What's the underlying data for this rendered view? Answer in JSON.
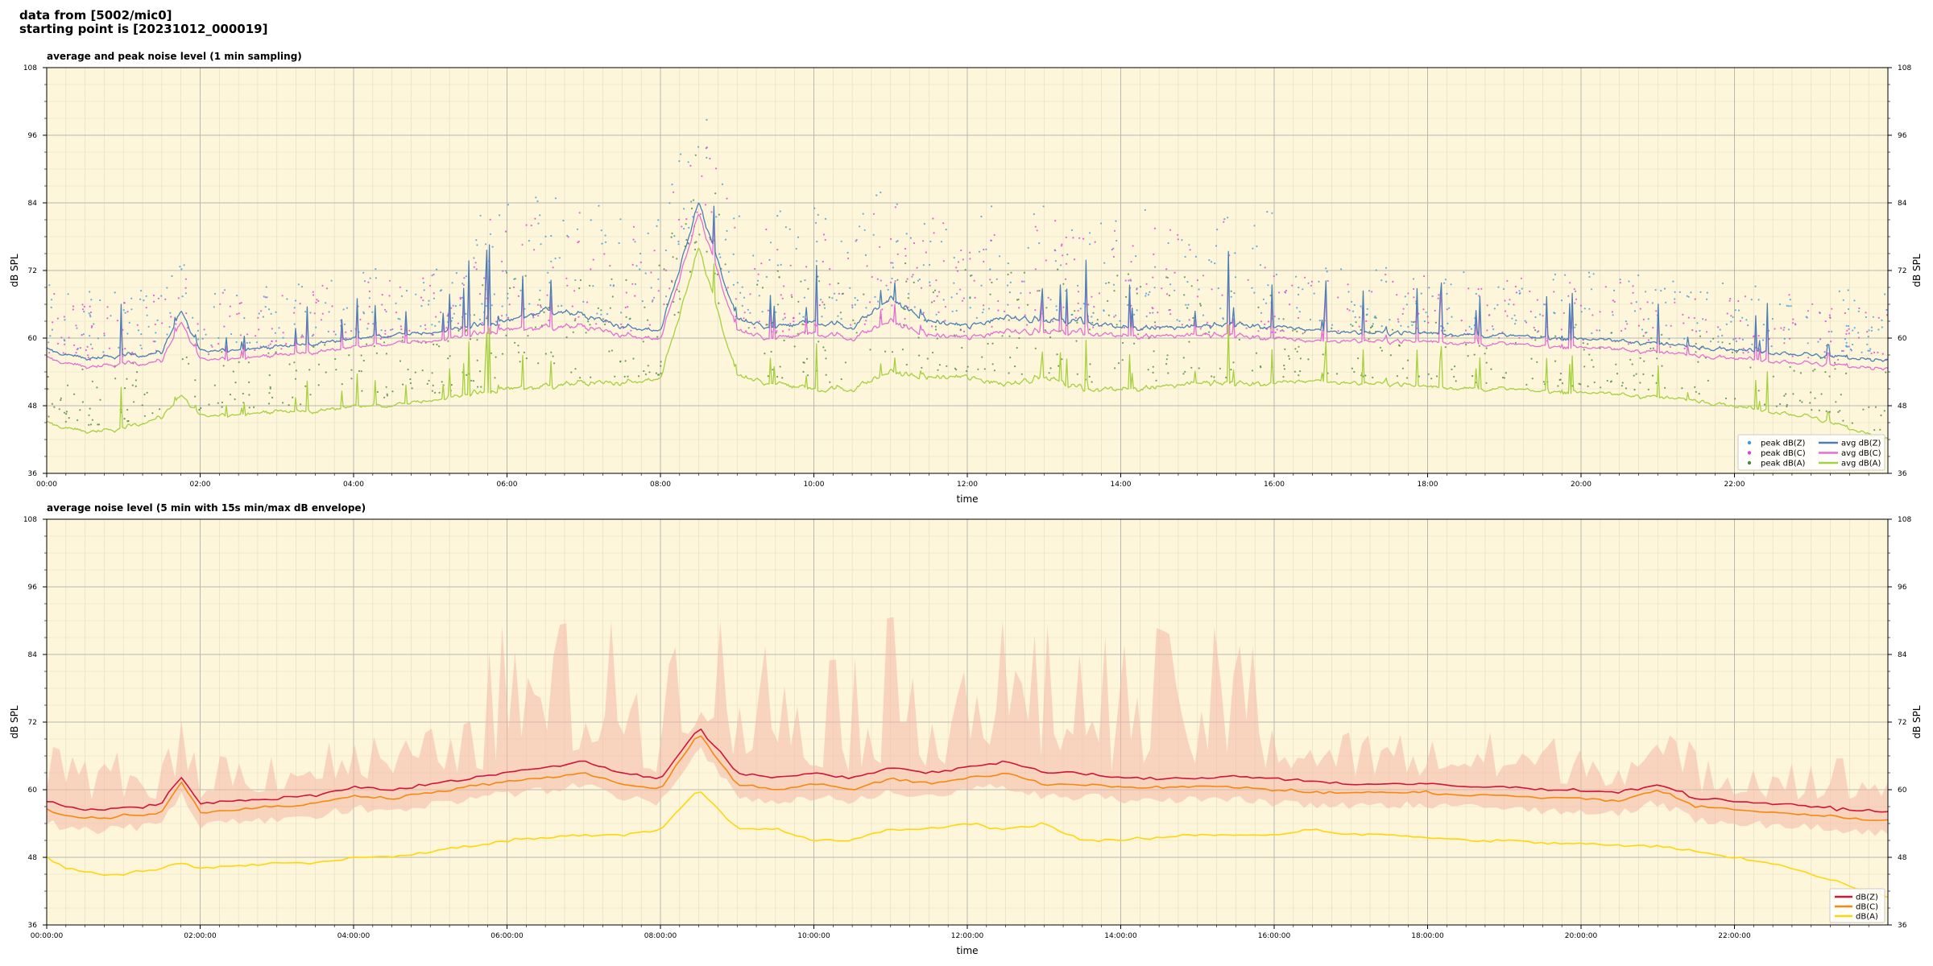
{
  "header": {
    "line1": "data from [5002/mic0]",
    "line2": "starting point is [20231012_000019]"
  },
  "colors": {
    "plot_bg": "#fdf6db",
    "z": "#4a7eb5",
    "c": "#e36fd2",
    "a": "#a6d13e",
    "peak_z": "#3f9ae0",
    "peak_c": "#e040d8",
    "peak_a": "#4a8a3a",
    "z2": "#d01538",
    "c2": "#f7880f",
    "a2": "#ffd60a",
    "envelope": "#f4b8a8"
  },
  "chart_data": [
    {
      "type": "line",
      "title": "average and peak noise level (1 min sampling)",
      "xlabel": "time",
      "ylabel": "dB SPL",
      "ylim": [
        36,
        108
      ],
      "xlim_hours": [
        0,
        24
      ],
      "yticks": [
        "36",
        "48",
        "60",
        "72",
        "84",
        "96",
        "108"
      ],
      "xticks": [
        "00:00",
        "02:00",
        "04:00",
        "06:00",
        "08:00",
        "10:00",
        "12:00",
        "14:00",
        "16:00",
        "18:00",
        "20:00",
        "22:00"
      ],
      "grid": true,
      "legend_position": "lower-right",
      "legend": [
        "peak dB(Z)",
        "peak dB(C)",
        "peak dB(A)",
        "avg dB(Z)",
        "avg dB(C)",
        "avg dB(A)"
      ],
      "x_hours": [
        0,
        0.25,
        0.5,
        0.75,
        1,
        1.25,
        1.5,
        1.75,
        2,
        2.5,
        3,
        3.5,
        4,
        4.5,
        5,
        5.5,
        6,
        6.5,
        7,
        7.5,
        8,
        8.5,
        9,
        9.5,
        10,
        10.5,
        11,
        11.5,
        12,
        12.5,
        13,
        13.5,
        14,
        14.5,
        15,
        15.5,
        16,
        16.5,
        17,
        17.5,
        18,
        18.5,
        19,
        19.5,
        20,
        20.5,
        21,
        21.5,
        22,
        22.5,
        23,
        23.5,
        24
      ],
      "series": [
        {
          "name": "avg dB(Z)",
          "values": [
            58,
            57,
            56.5,
            56.5,
            57,
            57,
            57.5,
            65,
            57.5,
            58,
            58.5,
            59,
            60,
            60.5,
            61,
            62,
            63,
            65,
            64,
            62,
            61,
            84,
            63,
            62,
            63,
            62,
            67,
            63,
            62,
            64,
            63,
            63,
            62,
            62,
            62,
            62.5,
            62,
            61.5,
            61,
            61,
            61,
            60.5,
            60.5,
            60,
            60,
            59.5,
            59,
            58.5,
            58,
            57.5,
            57,
            56.5,
            56
          ]
        },
        {
          "name": "avg dB(C)",
          "values": [
            56.5,
            55.5,
            55,
            55,
            55.5,
            55.5,
            56,
            63,
            56,
            56.5,
            57,
            57.5,
            58.5,
            59,
            59.5,
            60.5,
            61.5,
            62,
            62,
            60.5,
            59.5,
            82,
            61,
            60,
            61,
            60,
            63,
            60.5,
            60,
            61.5,
            61,
            61,
            60.5,
            60.5,
            60.5,
            60.5,
            60,
            59.5,
            59.5,
            59.5,
            59.5,
            59,
            59,
            58.5,
            58.5,
            58,
            57.5,
            57,
            56.5,
            56,
            55.5,
            55,
            54.5
          ]
        },
        {
          "name": "avg dB(A)",
          "values": [
            45,
            44,
            43.5,
            43.5,
            44,
            45,
            46,
            50,
            46,
            46.5,
            47,
            47,
            48,
            48,
            49,
            50,
            51,
            51.5,
            52,
            52,
            52.5,
            76,
            53,
            52,
            51,
            51,
            54,
            53,
            53,
            52,
            53,
            51,
            51,
            51.5,
            52,
            52,
            52,
            52.5,
            52,
            52,
            51.5,
            51,
            51,
            50.5,
            50.5,
            50,
            49.5,
            49,
            48,
            47,
            46,
            44,
            42
          ]
        }
      ]
    },
    {
      "type": "line",
      "title": "average noise level (5 min with 15s min/max dB envelope)",
      "xlabel": "time",
      "ylabel": "dB SPL",
      "ylim": [
        36,
        108
      ],
      "xlim_hours": [
        0,
        24
      ],
      "yticks": [
        "36",
        "48",
        "60",
        "72",
        "84",
        "96",
        "108"
      ],
      "xticks": [
        "00:00:00",
        "02:00:00",
        "04:00:00",
        "06:00:00",
        "08:00:00",
        "10:00:00",
        "12:00:00",
        "14:00:00",
        "16:00:00",
        "18:00:00",
        "20:00:00",
        "22:00:00"
      ],
      "grid": true,
      "legend_position": "lower-right",
      "legend": [
        "dB(Z)",
        "dB(C)",
        "dB(A)"
      ],
      "x_hours": [
        0,
        0.25,
        0.5,
        0.75,
        1,
        1.25,
        1.5,
        1.75,
        2,
        2.5,
        3,
        3.5,
        4,
        4.5,
        5,
        5.5,
        6,
        6.5,
        7,
        7.5,
        8,
        8.5,
        9,
        9.5,
        10,
        10.5,
        11,
        11.5,
        12,
        12.5,
        13,
        13.5,
        14,
        14.5,
        15,
        15.5,
        16,
        16.5,
        17,
        17.5,
        18,
        18.5,
        19,
        19.5,
        20,
        20.5,
        21,
        21.5,
        22,
        22.5,
        23,
        23.5,
        24
      ],
      "series": [
        {
          "name": "dB(Z)",
          "values": [
            58,
            57,
            56.5,
            56.5,
            57,
            57,
            57.5,
            62.5,
            57.5,
            58,
            58.5,
            59,
            60.5,
            60,
            61,
            62,
            63,
            64,
            65,
            63,
            62,
            71,
            63,
            62,
            63,
            62,
            64,
            63,
            64,
            65,
            63,
            63,
            62,
            62,
            62,
            62.5,
            62,
            61.5,
            61,
            61,
            61,
            60.5,
            60.5,
            60,
            60,
            59.5,
            61,
            58.5,
            58,
            57.5,
            57,
            56.5,
            56
          ]
        },
        {
          "name": "dB(C)",
          "values": [
            56.5,
            55.5,
            55,
            55,
            55.5,
            55.5,
            56,
            61.5,
            56,
            56.5,
            57,
            57.5,
            59,
            58.5,
            59.5,
            60.5,
            61.5,
            62,
            63,
            61,
            60,
            70,
            61,
            60,
            61,
            60,
            62,
            61,
            62,
            63,
            61,
            61,
            60.5,
            60.5,
            60.5,
            60.5,
            60,
            59.5,
            59.5,
            59.5,
            59.5,
            59,
            59,
            58.5,
            58.5,
            58,
            60,
            57,
            56.5,
            56,
            55.5,
            55,
            54.5
          ]
        },
        {
          "name": "dB(A)",
          "values": [
            48,
            46,
            45.5,
            45,
            45,
            45.5,
            46,
            47,
            46,
            46.5,
            47,
            47,
            48,
            48,
            49,
            50,
            51,
            51.5,
            52,
            52,
            53,
            60,
            53,
            53,
            51,
            51,
            53,
            53,
            54,
            53,
            54,
            51,
            51,
            51.5,
            52,
            52,
            52,
            53,
            52,
            52,
            51.5,
            51,
            51,
            50.5,
            50.5,
            50,
            50,
            49,
            48,
            47,
            45,
            43,
            41
          ]
        }
      ]
    }
  ]
}
